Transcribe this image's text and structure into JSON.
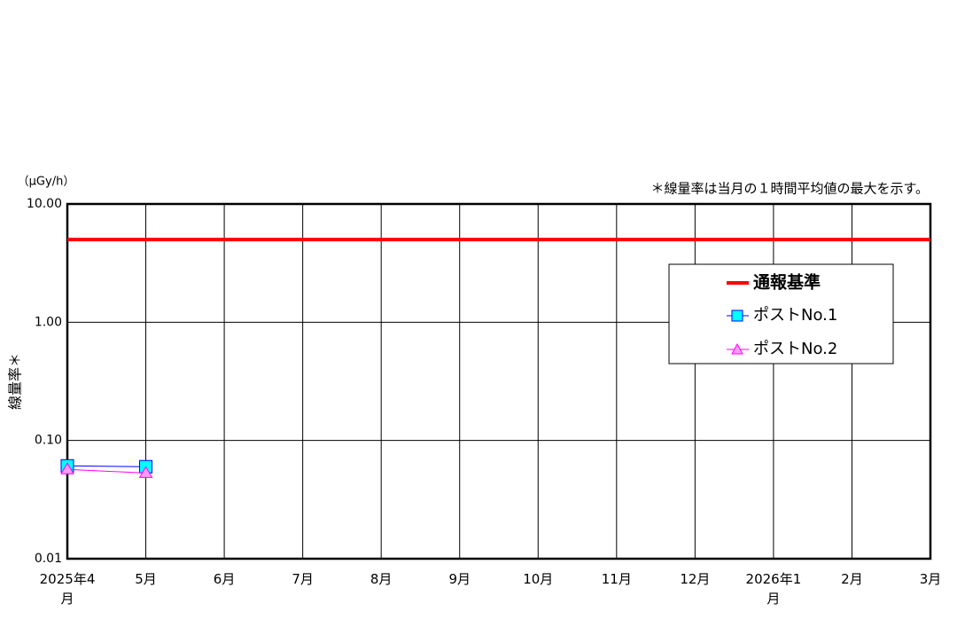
{
  "chart_data": {
    "type": "line",
    "y_unit": "（μGy/h）",
    "y_label": "線量率＊",
    "note": "＊線量率は当月の１時間平均値の最大を示す。",
    "log_y": true,
    "grid": true,
    "categories": [
      "2025年4月",
      "5月",
      "6月",
      "7月",
      "8月",
      "9月",
      "10月",
      "11月",
      "12月",
      "2026年1月",
      "2月",
      "3月"
    ],
    "ylim": [
      0.01,
      10
    ],
    "yticks": [
      {
        "value": 0.01,
        "label": "0.01"
      },
      {
        "value": 0.1,
        "label": "0.10"
      },
      {
        "value": 1,
        "label": "1.00"
      },
      {
        "value": 10,
        "label": "10.00"
      }
    ],
    "reference_lines": [
      {
        "name": "通報基準",
        "color": "#ff0000",
        "value": 5
      }
    ],
    "series": [
      {
        "name": "ポストNo.1",
        "color": "#0000ff",
        "marker": "square",
        "marker_color": "#00ffff",
        "values": [
          0.061,
          0.06,
          null,
          null,
          null,
          null,
          null,
          null,
          null,
          null,
          null,
          null
        ]
      },
      {
        "name": "ポストNo.2",
        "color": "#ff00ff",
        "marker": "triangle",
        "marker_color": "#ff99ff",
        "values": [
          0.057,
          0.053,
          null,
          null,
          null,
          null,
          null,
          null,
          null,
          null,
          null,
          null
        ]
      }
    ]
  }
}
